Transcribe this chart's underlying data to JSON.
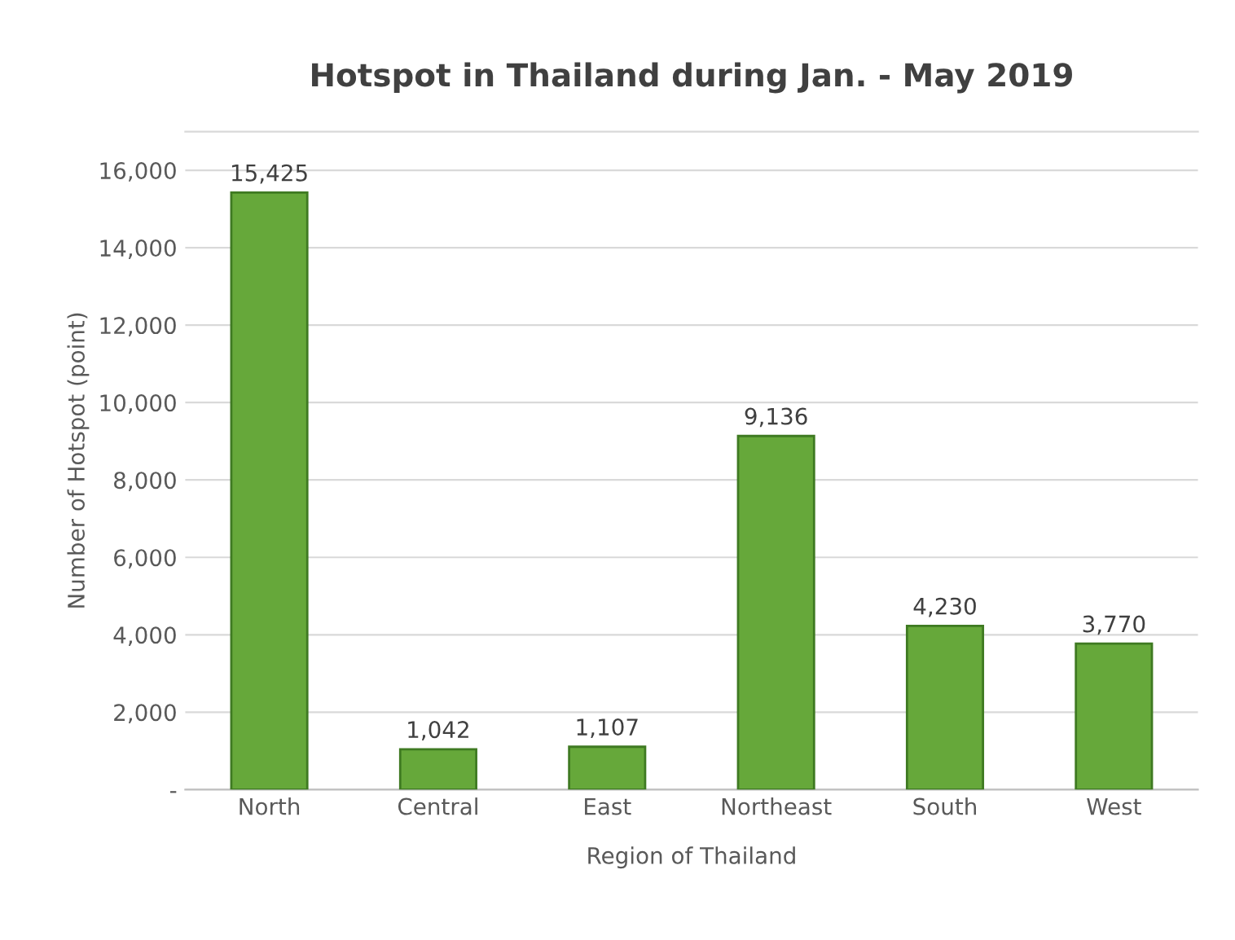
{
  "chart_data": {
    "type": "bar",
    "title": "Hotspot in Thailand during Jan. - May 2019",
    "xlabel": "Region of Thailand",
    "ylabel": "Number of Hotspot (point)",
    "categories": [
      "North",
      "Central",
      "East",
      "Northeast",
      "South",
      "West"
    ],
    "values": [
      15425,
      1042,
      1107,
      9136,
      4230,
      3770
    ],
    "value_labels": [
      "15,425",
      "1,042",
      "1,107",
      "9,136",
      "4,230",
      "3,770"
    ],
    "color": "#66a83a",
    "ylim": [
      0,
      17000
    ],
    "yticks": [
      {
        "value": 0,
        "label": "-"
      },
      {
        "value": 2000,
        "label": "2,000"
      },
      {
        "value": 4000,
        "label": "4,000"
      },
      {
        "value": 6000,
        "label": "6,000"
      },
      {
        "value": 8000,
        "label": "8,000"
      },
      {
        "value": 10000,
        "label": "10,000"
      },
      {
        "value": 12000,
        "label": "12,000"
      },
      {
        "value": 14000,
        "label": "14,000"
      },
      {
        "value": 16000,
        "label": "16,000"
      }
    ],
    "grid": "y",
    "legend": false
  }
}
